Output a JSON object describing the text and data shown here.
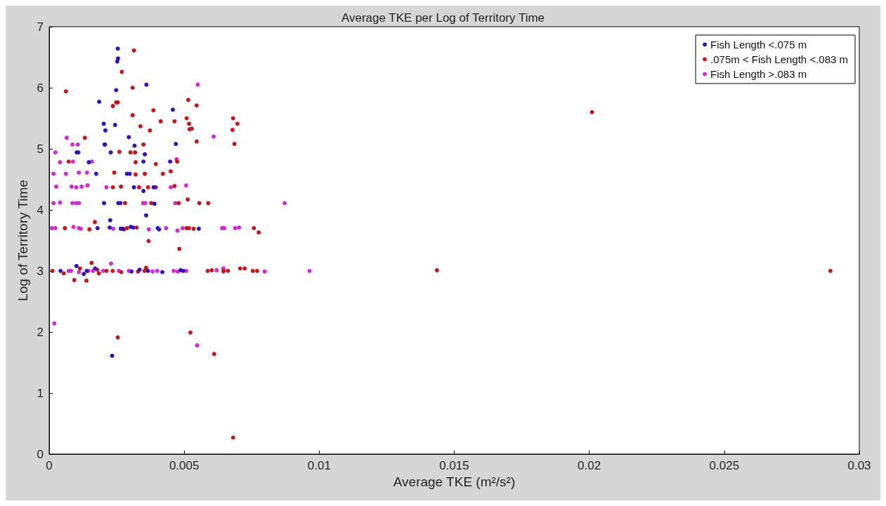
{
  "chart_data": {
    "type": "scatter",
    "title": "Average TKE per Log of Territory Time",
    "xlabel": "Average TKE (m²/s²)",
    "ylabel": "Log of Territory Time",
    "xlim": [
      0,
      0.03
    ],
    "xticks": [
      0,
      0.005,
      0.01,
      0.015,
      0.02,
      0.025,
      0.03
    ],
    "ylim": [
      0,
      7
    ],
    "yticks": [
      0,
      1,
      2,
      3,
      4,
      5,
      6,
      7
    ],
    "grid": false,
    "legend": "top right",
    "marker": "circle",
    "series": [
      {
        "name": "Fish Length <.075 m",
        "color": "#3311bb",
        "x": [
          0.00254,
          0.00255,
          0.00252,
          0.00248,
          0.0036,
          0.00185,
          0.00202,
          0.00208,
          0.00244,
          0.00295,
          0.00205,
          0.00228,
          0.00316,
          0.00354,
          0.00102,
          0.00108,
          0.00147,
          0.00174,
          0.00288,
          0.00298,
          0.00314,
          0.00349,
          0.00349,
          0.00387,
          0.00448,
          0.00458,
          0.00469,
          0.00203,
          0.00256,
          0.00264,
          0.0039,
          0.00359,
          0.00226,
          0.00179,
          0.00224,
          0.00265,
          0.00273,
          0.00302,
          0.00311,
          0.00402,
          0.00407,
          0.00554,
          0.00042,
          0.00101,
          0.00128,
          0.00139,
          0.0017,
          0.00305,
          0.00335,
          0.00366,
          0.00419,
          0.00487,
          0.00497,
          0.00233
        ],
        "values": [
          6.64,
          6.48,
          6.43,
          5.96,
          6.05,
          5.77,
          5.41,
          5.3,
          5.39,
          5.19,
          5.07,
          4.94,
          5.05,
          4.91,
          4.94,
          4.94,
          4.78,
          4.59,
          4.59,
          4.59,
          4.37,
          4.79,
          4.31,
          4.37,
          4.79,
          5.64,
          5.08,
          4.11,
          4.11,
          4.11,
          4.1,
          3.91,
          3.83,
          3.7,
          3.71,
          3.69,
          3.69,
          3.72,
          3.71,
          3.7,
          3.68,
          3.69,
          3.0,
          3.08,
          2.95,
          3.0,
          3.04,
          2.99,
          3.02,
          3.0,
          2.98,
          3.01,
          3.0,
          1.61
        ]
      },
      {
        "name": ".075m < Fish Length <.083 m",
        "color": "#c0191f",
        "x": [
          0.00314,
          0.00269,
          0.00062,
          0.00309,
          0.00236,
          0.00248,
          0.00254,
          0.00309,
          0.00386,
          0.00413,
          0.00338,
          0.00373,
          0.00132,
          0.00207,
          0.00349,
          0.0026,
          0.00301,
          0.00318,
          0.00072,
          0.0032,
          0.00395,
          0.00241,
          0.0032,
          0.00354,
          0.00421,
          0.0045,
          0.00236,
          0.00266,
          0.00333,
          0.00366,
          0.00395,
          0.00464,
          0.00515,
          0.00546,
          0.00509,
          0.00518,
          0.0052,
          0.00528,
          0.00681,
          0.00697,
          0.00679,
          0.00546,
          0.00686,
          0.00474,
          0.00464,
          0.00513,
          0.0048,
          0.00556,
          0.00589,
          0.00281,
          0.00378,
          0.00169,
          0.00058,
          0.00149,
          0.00277,
          0.00288,
          0.00324,
          0.00368,
          0.00509,
          0.00518,
          0.00535,
          0.00758,
          0.00776,
          0.00482,
          0.00012,
          0.00054,
          0.00114,
          0.00157,
          0.00093,
          0.00138,
          0.00178,
          0.00184,
          0.00212,
          0.00235,
          0.00267,
          0.00329,
          0.00353,
          0.00359,
          0.00587,
          0.00602,
          0.00646,
          0.00662,
          0.00707,
          0.00724,
          0.00754,
          0.0077,
          0.01436,
          0.02893,
          0.0201,
          0.00254,
          0.00523,
          0.00611,
          0.00681
        ],
        "values": [
          6.61,
          6.26,
          5.94,
          6.0,
          5.7,
          5.76,
          5.76,
          5.55,
          5.63,
          5.45,
          5.37,
          5.3,
          5.18,
          5.07,
          5.07,
          4.95,
          4.94,
          4.94,
          4.79,
          4.78,
          4.75,
          4.61,
          4.58,
          4.59,
          4.59,
          4.63,
          4.37,
          4.38,
          4.37,
          4.37,
          4.37,
          5.45,
          5.8,
          5.71,
          5.5,
          5.41,
          5.32,
          5.33,
          5.5,
          5.41,
          5.31,
          5.12,
          5.08,
          4.79,
          4.39,
          4.17,
          4.11,
          4.11,
          4.11,
          4.11,
          4.11,
          3.8,
          3.7,
          3.68,
          3.68,
          3.7,
          3.71,
          3.49,
          3.7,
          3.7,
          3.69,
          3.7,
          3.63,
          3.36,
          3.0,
          2.96,
          3.04,
          3.13,
          2.85,
          2.84,
          3.02,
          2.96,
          3.0,
          3.0,
          2.98,
          2.99,
          3.0,
          3.05,
          3.0,
          3.01,
          3.0,
          3.0,
          3.04,
          3.04,
          3.0,
          3.0,
          3.01,
          3.0,
          5.6,
          1.91,
          1.99,
          1.64,
          0.27
        ]
      },
      {
        "name": "Fish Length >.083 m",
        "color": "#d42ad4",
        "x": [
          0.00065,
          0.00086,
          0.00106,
          0.00023,
          0.0004,
          0.00088,
          0.00158,
          0.00016,
          0.00062,
          0.0011,
          0.0014,
          0.00026,
          0.00083,
          0.001,
          0.0012,
          0.00142,
          0.00212,
          0.0045,
          0.0055,
          0.00609,
          0.00472,
          0.00507,
          0.00467,
          0.00872,
          0.00016,
          0.0004,
          0.00086,
          0.001,
          0.0011,
          0.00348,
          0.00356,
          0.0001,
          0.00023,
          0.0009,
          0.0011,
          0.00117,
          0.00237,
          0.00369,
          0.00433,
          0.00475,
          0.00494,
          0.0064,
          0.00644,
          0.00648,
          0.00689,
          0.00703,
          0.00072,
          0.00081,
          0.0011,
          0.00145,
          0.00162,
          0.002,
          0.00229,
          0.00258,
          0.00295,
          0.00383,
          0.004,
          0.00461,
          0.00476,
          0.00508,
          0.0062,
          0.00645,
          0.00645,
          0.00798,
          0.00964,
          0.00019,
          0.00548
        ],
        "values": [
          5.18,
          5.07,
          5.07,
          4.94,
          4.78,
          4.79,
          4.79,
          4.59,
          4.59,
          4.61,
          4.61,
          4.38,
          4.38,
          4.37,
          4.38,
          4.4,
          4.37,
          4.37,
          6.05,
          5.2,
          4.83,
          4.4,
          4.11,
          4.11,
          4.11,
          4.12,
          4.11,
          4.11,
          4.11,
          4.11,
          4.11,
          3.7,
          3.7,
          3.72,
          3.7,
          3.69,
          3.69,
          3.68,
          3.7,
          3.66,
          3.7,
          3.7,
          3.7,
          3.7,
          3.7,
          3.71,
          3.0,
          3.0,
          2.98,
          3.0,
          3.0,
          3.0,
          3.12,
          3.0,
          3.0,
          2.99,
          3.0,
          3.0,
          2.99,
          3.0,
          3.01,
          3.04,
          2.99,
          2.99,
          3.0,
          2.14,
          1.78
        ]
      }
    ]
  }
}
